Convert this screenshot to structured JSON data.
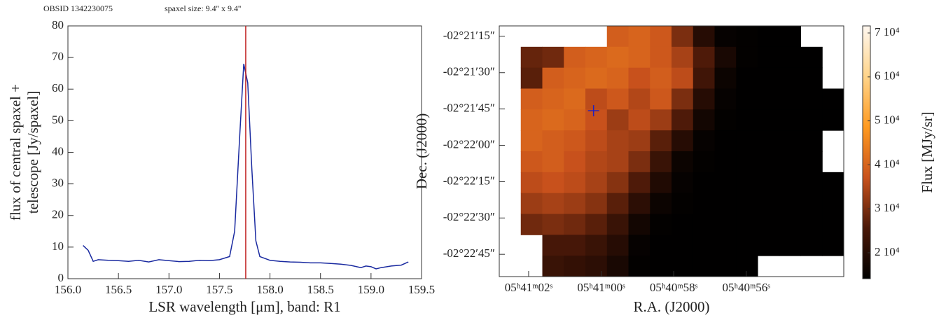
{
  "header": {
    "obsid": "OBSID 1342230075",
    "spaxel": "spaxel size: 9.4'' x 9.4''"
  },
  "chart_data": [
    {
      "type": "line",
      "xlabel": "LSR wavelength [μm], band: R1",
      "ylabel": [
        "flux of central spaxel +",
        "telescope [Jy/spaxel]"
      ],
      "x": [
        156.15,
        156.2,
        156.25,
        156.3,
        156.4,
        156.5,
        156.6,
        156.7,
        156.8,
        156.9,
        157.0,
        157.1,
        157.2,
        157.3,
        157.4,
        157.5,
        157.6,
        157.65,
        157.7,
        157.74,
        157.78,
        157.82,
        157.86,
        157.9,
        158.0,
        158.1,
        158.2,
        158.3,
        158.4,
        158.5,
        158.6,
        158.7,
        158.8,
        158.9,
        158.95,
        159.0,
        159.05,
        159.1,
        159.2,
        159.3,
        159.37
      ],
      "values": [
        10.5,
        9,
        5.5,
        6,
        5.8,
        5.7,
        5.5,
        5.8,
        5.3,
        6,
        5.7,
        5.4,
        5.5,
        5.8,
        5.7,
        6,
        7,
        15,
        45,
        68,
        62,
        35,
        12,
        7,
        5.8,
        5.5,
        5.3,
        5.2,
        5,
        5,
        4.8,
        4.6,
        4.2,
        3.5,
        4,
        3.8,
        3.1,
        3.5,
        4,
        4.3,
        5.3
      ],
      "color": "#1a2aa0",
      "vline": {
        "value": 157.76,
        "color": "#c02020"
      },
      "xlim": [
        156.0,
        159.5
      ],
      "xticks": [
        {
          "value": 156,
          "label": "156.0"
        },
        {
          "value": 156.5,
          "label": "156.5"
        },
        {
          "value": 157,
          "label": "157.0"
        },
        {
          "value": 157.5,
          "label": "157.5"
        },
        {
          "value": 158,
          "label": "158.0"
        },
        {
          "value": 158.5,
          "label": "158.5"
        },
        {
          "value": 159,
          "label": "159.0"
        },
        {
          "value": 159.5,
          "label": "159.5"
        }
      ],
      "ylim": [
        0,
        80
      ],
      "yticks": [
        0,
        10,
        20,
        30,
        40,
        50,
        60,
        70,
        80
      ]
    },
    {
      "type": "heatmap",
      "xlabel": "R.A. (J2000)",
      "ylabel": "Dec. (J2000)",
      "colorbar_label": "Flux [MJy/sr]",
      "xlim": [
        62.81,
        53.31
      ],
      "xticks": [
        {
          "value": 62,
          "label": "05ʰ41ᵐ02ˢ"
        },
        {
          "value": 60,
          "label": "05ʰ41ᵐ00ˢ"
        },
        {
          "value": 58,
          "label": "05ʰ40ᵐ58ˢ"
        },
        {
          "value": 56,
          "label": "05ʰ40ᵐ56ˢ"
        }
      ],
      "ylim": [
        -8574.2,
        -8470.7
      ],
      "yticks": [
        {
          "value": -8475,
          "label": "-02°21′15″"
        },
        {
          "value": -8490,
          "label": "-02°21′30″"
        },
        {
          "value": -8505,
          "label": "-02°21′45″"
        },
        {
          "value": -8520,
          "label": "-02°22′00″"
        },
        {
          "value": -8535,
          "label": "-02°22′15″"
        },
        {
          "value": -8550,
          "label": "-02°22′30″"
        },
        {
          "value": -8565,
          "label": "-02°22′45″"
        }
      ],
      "clim": [
        14100,
        71600
      ],
      "cticks": [
        {
          "value": 20000,
          "label": "2 10⁴"
        },
        {
          "value": 30000,
          "label": "3 10⁴"
        },
        {
          "value": 40000,
          "label": "4 10⁴"
        },
        {
          "value": 50000,
          "label": "5 10⁴"
        },
        {
          "value": 60000,
          "label": "6 10⁴"
        },
        {
          "value": 70000,
          "label": "7 10⁴"
        }
      ],
      "colormap": [
        "#000000",
        "#4a1808",
        "#c9521c",
        "#ff9a20",
        "#ffd48a",
        "#fff8f0"
      ],
      "marker": {
        "x": 60.21,
        "y": -8505.7,
        "color": "#2020c0"
      },
      "z": [
        [
          null,
          null,
          null,
          null,
          null,
          39000,
          40000,
          38000,
          30000,
          20000,
          15000,
          14500,
          14300,
          14300,
          null,
          null
        ],
        [
          null,
          28000,
          29000,
          39000,
          40000,
          41000,
          40000,
          38000,
          34000,
          26000,
          18000,
          14500,
          14300,
          14300,
          14300,
          null
        ],
        [
          null,
          27000,
          39000,
          40000,
          41000,
          40000,
          37000,
          39000,
          36000,
          24000,
          16000,
          14300,
          14300,
          14300,
          14300,
          null
        ],
        [
          null,
          39000,
          40000,
          41000,
          36000,
          38000,
          35000,
          38000,
          30000,
          20000,
          15000,
          14300,
          14300,
          14300,
          14300,
          14300
        ],
        [
          null,
          40000,
          41000,
          40000,
          37000,
          33000,
          36000,
          33000,
          26000,
          17000,
          14500,
          14300,
          14300,
          14300,
          14300,
          14300
        ],
        [
          null,
          40000,
          39000,
          38000,
          36000,
          34000,
          33000,
          27000,
          20000,
          15000,
          14300,
          14300,
          14300,
          14300,
          14300,
          null
        ],
        [
          null,
          38000,
          39000,
          37000,
          35000,
          34000,
          30000,
          23000,
          16000,
          14500,
          14300,
          14300,
          14300,
          14300,
          14300,
          null
        ],
        [
          null,
          36000,
          37000,
          36000,
          34000,
          31000,
          26000,
          19000,
          15000,
          14300,
          14300,
          14300,
          14300,
          14300,
          14300,
          14300
        ],
        [
          null,
          33000,
          34000,
          33000,
          31000,
          27000,
          21000,
          16000,
          14500,
          14300,
          14300,
          14300,
          14300,
          14300,
          14300,
          14300
        ],
        [
          null,
          29000,
          30000,
          29000,
          27000,
          23000,
          17000,
          14500,
          14300,
          14300,
          14300,
          14300,
          14300,
          14300,
          14300,
          14300
        ],
        [
          null,
          null,
          25000,
          25000,
          23000,
          20000,
          15000,
          14300,
          14300,
          14300,
          14300,
          14300,
          14300,
          14300,
          14300,
          14300
        ],
        [
          null,
          null,
          23000,
          22000,
          21000,
          18000,
          14500,
          14300,
          14300,
          14300,
          14300,
          14300,
          null,
          null,
          null,
          null
        ]
      ]
    }
  ]
}
